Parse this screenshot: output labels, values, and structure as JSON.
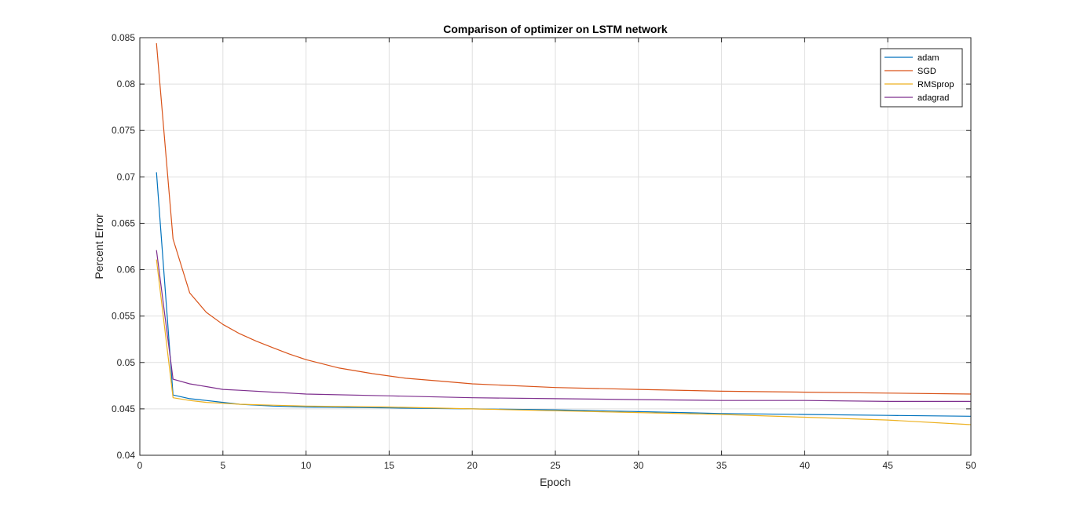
{
  "chart_data": {
    "type": "line",
    "title": "Comparison of optimizer on LSTM network",
    "xlabel": "Epoch",
    "ylabel": "Percent Error",
    "xlim": [
      0,
      50
    ],
    "ylim": [
      0.04,
      0.085
    ],
    "xticks": [
      0,
      5,
      10,
      15,
      20,
      25,
      30,
      35,
      40,
      45,
      50
    ],
    "yticks": [
      0.04,
      0.045,
      0.05,
      0.055,
      0.06,
      0.065,
      0.07,
      0.075,
      0.08,
      0.085
    ],
    "xtick_labels": [
      "0",
      "5",
      "10",
      "15",
      "20",
      "25",
      "30",
      "35",
      "40",
      "45",
      "50"
    ],
    "ytick_labels": [
      "0.04",
      "0.045",
      "0.05",
      "0.055",
      "0.06",
      "0.065",
      "0.07",
      "0.075",
      "0.08",
      "0.085"
    ],
    "grid": true,
    "legend_position": "top-right",
    "series": [
      {
        "name": "adam",
        "color": "#0072bd",
        "points": [
          [
            1,
            0.0705
          ],
          [
            2,
            0.0465
          ],
          [
            3,
            0.0461
          ],
          [
            4,
            0.0459
          ],
          [
            5,
            0.0457
          ],
          [
            6,
            0.0455
          ],
          [
            7,
            0.0454
          ],
          [
            8,
            0.0453
          ],
          [
            10,
            0.0452
          ],
          [
            15,
            0.0451
          ],
          [
            20,
            0.045
          ],
          [
            25,
            0.0449
          ],
          [
            30,
            0.0447
          ],
          [
            35,
            0.0445
          ],
          [
            40,
            0.0444
          ],
          [
            45,
            0.0443
          ],
          [
            50,
            0.0442
          ]
        ]
      },
      {
        "name": "SGD",
        "color": "#d95319",
        "points": [
          [
            1,
            0.0844
          ],
          [
            2,
            0.0633
          ],
          [
            3,
            0.0575
          ],
          [
            4,
            0.0554
          ],
          [
            5,
            0.0541
          ],
          [
            6,
            0.0531
          ],
          [
            7,
            0.0523
          ],
          [
            8,
            0.0516
          ],
          [
            9,
            0.0509
          ],
          [
            10,
            0.0503
          ],
          [
            12,
            0.0494
          ],
          [
            14,
            0.0488
          ],
          [
            16,
            0.0483
          ],
          [
            18,
            0.048
          ],
          [
            20,
            0.0477
          ],
          [
            25,
            0.0473
          ],
          [
            30,
            0.0471
          ],
          [
            35,
            0.0469
          ],
          [
            40,
            0.0468
          ],
          [
            45,
            0.0467
          ],
          [
            50,
            0.0466
          ]
        ]
      },
      {
        "name": "RMSprop",
        "color": "#edb120",
        "points": [
          [
            1,
            0.0611
          ],
          [
            2,
            0.0462
          ],
          [
            3,
            0.0459
          ],
          [
            4,
            0.0457
          ],
          [
            5,
            0.0456
          ],
          [
            6,
            0.0455
          ],
          [
            8,
            0.0454
          ],
          [
            10,
            0.0453
          ],
          [
            15,
            0.0452
          ],
          [
            20,
            0.045
          ],
          [
            25,
            0.0448
          ],
          [
            30,
            0.0446
          ],
          [
            35,
            0.0444
          ],
          [
            40,
            0.0441
          ],
          [
            45,
            0.0438
          ],
          [
            50,
            0.0433
          ]
        ]
      },
      {
        "name": "adagrad",
        "color": "#7e2f8e",
        "points": [
          [
            1,
            0.0621
          ],
          [
            2,
            0.0482
          ],
          [
            3,
            0.0477
          ],
          [
            4,
            0.0474
          ],
          [
            5,
            0.0471
          ],
          [
            6,
            0.047
          ],
          [
            8,
            0.0468
          ],
          [
            10,
            0.0466
          ],
          [
            15,
            0.0464
          ],
          [
            20,
            0.0462
          ],
          [
            25,
            0.0461
          ],
          [
            30,
            0.046
          ],
          [
            35,
            0.0459
          ],
          [
            40,
            0.0459
          ],
          [
            45,
            0.0458
          ],
          [
            50,
            0.0458
          ]
        ]
      }
    ]
  }
}
